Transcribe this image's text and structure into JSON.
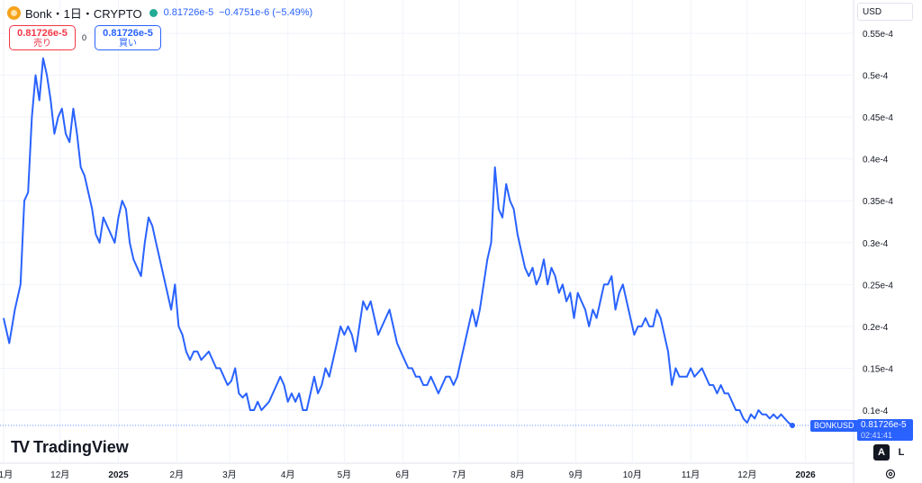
{
  "header": {
    "title": "Bonk・1日・CRYPTO",
    "price": "0.81726e-5",
    "change": "−0.4751e-6 (−5.49%)"
  },
  "trade": {
    "sell_price": "0.81726e-5",
    "sell_label": "売り",
    "spread": "0",
    "buy_price": "0.81726e-5",
    "buy_label": "買い"
  },
  "currency": "USD",
  "brand": "TradingView",
  "last": {
    "symbol": "BONKUSD",
    "price": "0.81726e-5",
    "countdown": "02:41:41"
  },
  "controls": {
    "auto": "A",
    "log": "L"
  },
  "colors": {
    "line": "#2962ff",
    "grid": "#f0f3fa",
    "text": "#131722"
  },
  "chart_data": {
    "type": "line",
    "y_unit": "1e-4",
    "ylim": [
      0.07,
      0.57
    ],
    "xlim": [
      0,
      420
    ],
    "y_ticks": [
      0.1,
      0.15,
      0.2,
      0.25,
      0.3,
      0.35,
      0.4,
      0.45,
      0.5,
      0.55
    ],
    "y_tick_labels": [
      "0.1e-4",
      "0.15e-4",
      "0.2e-4",
      "0.25e-4",
      "0.3e-4",
      "0.35e-4",
      "0.4e-4",
      "0.45e-4",
      "0.5e-4",
      "0.55e-4"
    ],
    "x_ticks": [
      {
        "x": 0,
        "label": "11月",
        "bold": false
      },
      {
        "x": 30,
        "label": "12月",
        "bold": false
      },
      {
        "x": 61,
        "label": "2025",
        "bold": true
      },
      {
        "x": 92,
        "label": "2月",
        "bold": false
      },
      {
        "x": 120,
        "label": "3月",
        "bold": false
      },
      {
        "x": 151,
        "label": "4月",
        "bold": false
      },
      {
        "x": 181,
        "label": "5月",
        "bold": false
      },
      {
        "x": 212,
        "label": "6月",
        "bold": false
      },
      {
        "x": 242,
        "label": "7月",
        "bold": false
      },
      {
        "x": 273,
        "label": "8月",
        "bold": false
      },
      {
        "x": 304,
        "label": "9月",
        "bold": false
      },
      {
        "x": 334,
        "label": "10月",
        "bold": false
      },
      {
        "x": 365,
        "label": "11月",
        "bold": false
      },
      {
        "x": 395,
        "label": "12月",
        "bold": false
      },
      {
        "x": 426,
        "label": "2026",
        "bold": true
      }
    ],
    "grid": true,
    "last_value": 0.0817,
    "series": [
      {
        "values": [
          [
            0,
            0.21
          ],
          [
            3,
            0.18
          ],
          [
            6,
            0.22
          ],
          [
            9,
            0.25
          ],
          [
            11,
            0.35
          ],
          [
            13,
            0.36
          ],
          [
            15,
            0.45
          ],
          [
            17,
            0.5
          ],
          [
            19,
            0.47
          ],
          [
            21,
            0.52
          ],
          [
            23,
            0.5
          ],
          [
            25,
            0.47
          ],
          [
            27,
            0.43
          ],
          [
            29,
            0.45
          ],
          [
            31,
            0.46
          ],
          [
            33,
            0.43
          ],
          [
            35,
            0.42
          ],
          [
            37,
            0.46
          ],
          [
            39,
            0.43
          ],
          [
            41,
            0.39
          ],
          [
            43,
            0.38
          ],
          [
            45,
            0.36
          ],
          [
            47,
            0.34
          ],
          [
            49,
            0.31
          ],
          [
            51,
            0.3
          ],
          [
            53,
            0.33
          ],
          [
            55,
            0.32
          ],
          [
            57,
            0.31
          ],
          [
            59,
            0.3
          ],
          [
            61,
            0.33
          ],
          [
            63,
            0.35
          ],
          [
            65,
            0.34
          ],
          [
            67,
            0.3
          ],
          [
            69,
            0.28
          ],
          [
            71,
            0.27
          ],
          [
            73,
            0.26
          ],
          [
            75,
            0.3
          ],
          [
            77,
            0.33
          ],
          [
            79,
            0.32
          ],
          [
            81,
            0.3
          ],
          [
            83,
            0.28
          ],
          [
            85,
            0.26
          ],
          [
            87,
            0.24
          ],
          [
            89,
            0.22
          ],
          [
            91,
            0.25
          ],
          [
            93,
            0.2
          ],
          [
            95,
            0.19
          ],
          [
            97,
            0.17
          ],
          [
            99,
            0.16
          ],
          [
            101,
            0.17
          ],
          [
            103,
            0.17
          ],
          [
            105,
            0.16
          ],
          [
            107,
            0.165
          ],
          [
            109,
            0.17
          ],
          [
            111,
            0.16
          ],
          [
            113,
            0.15
          ],
          [
            115,
            0.15
          ],
          [
            117,
            0.14
          ],
          [
            119,
            0.13
          ],
          [
            121,
            0.135
          ],
          [
            123,
            0.15
          ],
          [
            125,
            0.12
          ],
          [
            127,
            0.115
          ],
          [
            129,
            0.12
          ],
          [
            131,
            0.1
          ],
          [
            133,
            0.1
          ],
          [
            135,
            0.11
          ],
          [
            137,
            0.1
          ],
          [
            139,
            0.105
          ],
          [
            141,
            0.11
          ],
          [
            143,
            0.12
          ],
          [
            145,
            0.13
          ],
          [
            147,
            0.14
          ],
          [
            149,
            0.13
          ],
          [
            151,
            0.11
          ],
          [
            153,
            0.12
          ],
          [
            155,
            0.11
          ],
          [
            157,
            0.12
          ],
          [
            159,
            0.1
          ],
          [
            161,
            0.1
          ],
          [
            163,
            0.12
          ],
          [
            165,
            0.14
          ],
          [
            167,
            0.12
          ],
          [
            169,
            0.13
          ],
          [
            171,
            0.15
          ],
          [
            173,
            0.14
          ],
          [
            175,
            0.16
          ],
          [
            177,
            0.18
          ],
          [
            179,
            0.2
          ],
          [
            181,
            0.19
          ],
          [
            183,
            0.2
          ],
          [
            185,
            0.19
          ],
          [
            187,
            0.17
          ],
          [
            189,
            0.2
          ],
          [
            191,
            0.23
          ],
          [
            193,
            0.22
          ],
          [
            195,
            0.23
          ],
          [
            197,
            0.21
          ],
          [
            199,
            0.19
          ],
          [
            201,
            0.2
          ],
          [
            203,
            0.21
          ],
          [
            205,
            0.22
          ],
          [
            207,
            0.2
          ],
          [
            209,
            0.18
          ],
          [
            211,
            0.17
          ],
          [
            213,
            0.16
          ],
          [
            215,
            0.15
          ],
          [
            217,
            0.15
          ],
          [
            219,
            0.14
          ],
          [
            221,
            0.14
          ],
          [
            223,
            0.13
          ],
          [
            225,
            0.13
          ],
          [
            227,
            0.14
          ],
          [
            229,
            0.13
          ],
          [
            231,
            0.12
          ],
          [
            233,
            0.13
          ],
          [
            235,
            0.14
          ],
          [
            237,
            0.14
          ],
          [
            239,
            0.13
          ],
          [
            241,
            0.14
          ],
          [
            243,
            0.16
          ],
          [
            245,
            0.18
          ],
          [
            247,
            0.2
          ],
          [
            249,
            0.22
          ],
          [
            251,
            0.2
          ],
          [
            253,
            0.22
          ],
          [
            255,
            0.25
          ],
          [
            257,
            0.28
          ],
          [
            259,
            0.3
          ],
          [
            261,
            0.39
          ],
          [
            263,
            0.34
          ],
          [
            265,
            0.33
          ],
          [
            267,
            0.37
          ],
          [
            269,
            0.35
          ],
          [
            271,
            0.34
          ],
          [
            273,
            0.31
          ],
          [
            275,
            0.29
          ],
          [
            277,
            0.27
          ],
          [
            279,
            0.26
          ],
          [
            281,
            0.27
          ],
          [
            283,
            0.25
          ],
          [
            285,
            0.26
          ],
          [
            287,
            0.28
          ],
          [
            289,
            0.25
          ],
          [
            291,
            0.27
          ],
          [
            293,
            0.26
          ],
          [
            295,
            0.24
          ],
          [
            297,
            0.25
          ],
          [
            299,
            0.23
          ],
          [
            301,
            0.24
          ],
          [
            303,
            0.21
          ],
          [
            305,
            0.24
          ],
          [
            307,
            0.23
          ],
          [
            309,
            0.22
          ],
          [
            311,
            0.2
          ],
          [
            313,
            0.22
          ],
          [
            315,
            0.21
          ],
          [
            317,
            0.23
          ],
          [
            319,
            0.25
          ],
          [
            321,
            0.25
          ],
          [
            323,
            0.26
          ],
          [
            325,
            0.22
          ],
          [
            327,
            0.24
          ],
          [
            329,
            0.25
          ],
          [
            331,
            0.23
          ],
          [
            333,
            0.21
          ],
          [
            335,
            0.19
          ],
          [
            337,
            0.2
          ],
          [
            339,
            0.2
          ],
          [
            341,
            0.21
          ],
          [
            343,
            0.2
          ],
          [
            345,
            0.2
          ],
          [
            347,
            0.22
          ],
          [
            349,
            0.21
          ],
          [
            351,
            0.19
          ],
          [
            353,
            0.17
          ],
          [
            355,
            0.13
          ],
          [
            357,
            0.15
          ],
          [
            359,
            0.14
          ],
          [
            361,
            0.14
          ],
          [
            363,
            0.14
          ],
          [
            365,
            0.15
          ],
          [
            367,
            0.14
          ],
          [
            369,
            0.145
          ],
          [
            371,
            0.15
          ],
          [
            373,
            0.14
          ],
          [
            375,
            0.13
          ],
          [
            377,
            0.13
          ],
          [
            379,
            0.12
          ],
          [
            381,
            0.13
          ],
          [
            383,
            0.12
          ],
          [
            385,
            0.12
          ],
          [
            387,
            0.11
          ],
          [
            389,
            0.1
          ],
          [
            391,
            0.1
          ],
          [
            393,
            0.09
          ],
          [
            395,
            0.085
          ],
          [
            397,
            0.095
          ],
          [
            399,
            0.09
          ],
          [
            401,
            0.1
          ],
          [
            403,
            0.095
          ],
          [
            405,
            0.095
          ],
          [
            407,
            0.09
          ],
          [
            409,
            0.095
          ],
          [
            411,
            0.09
          ],
          [
            413,
            0.095
          ],
          [
            415,
            0.09
          ],
          [
            417,
            0.085
          ],
          [
            419,
            0.0817
          ]
        ]
      }
    ]
  }
}
